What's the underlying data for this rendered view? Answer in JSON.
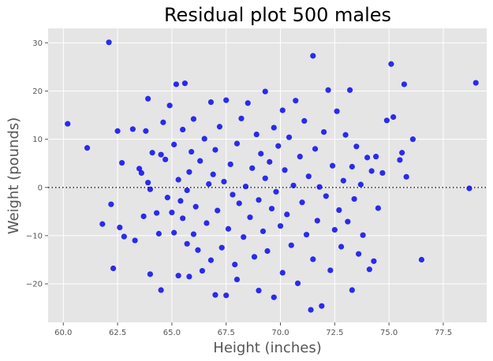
{
  "chart_data": {
    "type": "scatter",
    "title": "Residual plot 500 males",
    "xlabel": "Height (inches)",
    "ylabel": "Weight (pounds)",
    "xlim": [
      59.3,
      79.5
    ],
    "ylim": [
      -28,
      33
    ],
    "xticks": [
      60.0,
      62.5,
      65.0,
      67.5,
      70.0,
      72.5,
      75.0,
      77.5
    ],
    "xtick_labels": [
      "60.0",
      "62.5",
      "65.0",
      "67.5",
      "70.0",
      "72.5",
      "75.0",
      "77.5"
    ],
    "yticks": [
      -20,
      -10,
      0,
      10,
      20,
      30
    ],
    "ytick_labels": [
      "−20",
      "−10",
      "0",
      "10",
      "20",
      "30"
    ],
    "reference_line_y": 0,
    "grid": true,
    "style": "ggplot",
    "background_color": "#e5e5e5",
    "point_color": "#0000ee",
    "series": [
      {
        "values": [
          [
            60.2,
            13.2
          ],
          [
            61.1,
            8.2
          ],
          [
            61.8,
            -7.6
          ],
          [
            62.1,
            30.1
          ],
          [
            62.2,
            -3.5
          ],
          [
            62.3,
            -16.8
          ],
          [
            62.5,
            11.7
          ],
          [
            62.6,
            -8.3
          ],
          [
            62.7,
            5.1
          ],
          [
            62.8,
            -10.2
          ],
          [
            63.2,
            12.1
          ],
          [
            63.3,
            -11.0
          ],
          [
            63.5,
            3.9
          ],
          [
            63.6,
            3.0
          ],
          [
            63.7,
            -6.0
          ],
          [
            63.8,
            11.7
          ],
          [
            63.9,
            18.4
          ],
          [
            63.9,
            1.0
          ],
          [
            64.0,
            -18.0
          ],
          [
            64.0,
            -0.4
          ],
          [
            64.1,
            7.2
          ],
          [
            64.3,
            -5.3
          ],
          [
            64.4,
            -9.6
          ],
          [
            64.5,
            -21.3
          ],
          [
            64.5,
            6.8
          ],
          [
            64.6,
            13.5
          ],
          [
            64.7,
            5.8
          ],
          [
            64.8,
            -2.1
          ],
          [
            64.9,
            17.0
          ],
          [
            65.0,
            -5.2
          ],
          [
            65.1,
            -9.4
          ],
          [
            65.1,
            8.9
          ],
          [
            65.2,
            21.4
          ],
          [
            65.3,
            -18.3
          ],
          [
            65.3,
            1.6
          ],
          [
            65.4,
            -2.8
          ],
          [
            65.5,
            -6.4
          ],
          [
            65.5,
            12.0
          ],
          [
            65.6,
            21.6
          ],
          [
            65.7,
            -11.7
          ],
          [
            65.7,
            -0.6
          ],
          [
            65.8,
            -18.5
          ],
          [
            65.8,
            3.2
          ],
          [
            65.9,
            7.4
          ],
          [
            66.0,
            -9.7
          ],
          [
            66.0,
            14.2
          ],
          [
            66.1,
            -4.0
          ],
          [
            66.2,
            -13.0
          ],
          [
            66.3,
            5.5
          ],
          [
            66.4,
            -17.3
          ],
          [
            66.5,
            10.1
          ],
          [
            66.6,
            -7.4
          ],
          [
            66.7,
            0.7
          ],
          [
            66.8,
            -15.1
          ],
          [
            66.8,
            17.7
          ],
          [
            66.9,
            2.7
          ],
          [
            67.0,
            -22.3
          ],
          [
            67.0,
            7.8
          ],
          [
            67.1,
            -4.8
          ],
          [
            67.2,
            12.6
          ],
          [
            67.3,
            -12.5
          ],
          [
            67.4,
            1.2
          ],
          [
            67.5,
            -22.4
          ],
          [
            67.5,
            18.1
          ],
          [
            67.6,
            -8.6
          ],
          [
            67.7,
            4.8
          ],
          [
            67.8,
            -1.5
          ],
          [
            67.9,
            -16.0
          ],
          [
            68.0,
            9.1
          ],
          [
            68.0,
            -19.1
          ],
          [
            68.1,
            -3.3
          ],
          [
            68.2,
            14.3
          ],
          [
            68.3,
            -10.3
          ],
          [
            68.4,
            0.2
          ],
          [
            68.5,
            17.5
          ],
          [
            68.6,
            -6.2
          ],
          [
            68.7,
            4.0
          ],
          [
            68.8,
            -14.4
          ],
          [
            68.9,
            11.0
          ],
          [
            69.0,
            -2.6
          ],
          [
            69.0,
            -21.4
          ],
          [
            69.1,
            7.0
          ],
          [
            69.2,
            -9.1
          ],
          [
            69.3,
            19.9
          ],
          [
            69.3,
            1.9
          ],
          [
            69.4,
            -13.2
          ],
          [
            69.5,
            5.3
          ],
          [
            69.6,
            -4.4
          ],
          [
            69.7,
            -22.8
          ],
          [
            69.7,
            12.4
          ],
          [
            69.8,
            -0.9
          ],
          [
            69.9,
            8.6
          ],
          [
            70.0,
            -8.0
          ],
          [
            70.1,
            16.0
          ],
          [
            70.1,
            -17.7
          ],
          [
            70.2,
            3.6
          ],
          [
            70.3,
            -5.6
          ],
          [
            70.4,
            10.4
          ],
          [
            70.5,
            -12.0
          ],
          [
            70.6,
            0.4
          ],
          [
            70.7,
            18.0
          ],
          [
            70.8,
            -19.9
          ],
          [
            70.9,
            6.4
          ],
          [
            71.0,
            -3.1
          ],
          [
            71.1,
            13.8
          ],
          [
            71.2,
            -9.8
          ],
          [
            71.3,
            2.3
          ],
          [
            71.4,
            -25.4
          ],
          [
            71.5,
            27.3
          ],
          [
            71.5,
            -14.9
          ],
          [
            71.6,
            8.0
          ],
          [
            71.7,
            -6.9
          ],
          [
            71.8,
            0.1
          ],
          [
            71.9,
            -24.6
          ],
          [
            72.0,
            11.5
          ],
          [
            72.1,
            -1.8
          ],
          [
            72.2,
            20.2
          ],
          [
            72.3,
            -17.2
          ],
          [
            72.4,
            4.5
          ],
          [
            72.5,
            -8.8
          ],
          [
            72.6,
            15.8
          ],
          [
            72.7,
            -4.7
          ],
          [
            72.8,
            -12.3
          ],
          [
            72.9,
            1.4
          ],
          [
            73.0,
            10.9
          ],
          [
            73.1,
            -7.1
          ],
          [
            73.2,
            20.2
          ],
          [
            73.3,
            -21.3
          ],
          [
            73.3,
            4.3
          ],
          [
            73.4,
            -2.4
          ],
          [
            73.5,
            8.5
          ],
          [
            73.6,
            -13.8
          ],
          [
            73.7,
            0.6
          ],
          [
            73.8,
            -9.9
          ],
          [
            74.0,
            6.2
          ],
          [
            74.1,
            -17.0
          ],
          [
            74.2,
            3.4
          ],
          [
            74.3,
            -15.3
          ],
          [
            74.4,
            6.4
          ],
          [
            74.5,
            -4.3
          ],
          [
            74.7,
            3.0
          ],
          [
            74.9,
            13.9
          ],
          [
            75.1,
            25.6
          ],
          [
            75.2,
            14.6
          ],
          [
            75.5,
            5.7
          ],
          [
            75.6,
            7.2
          ],
          [
            75.7,
            21.4
          ],
          [
            75.8,
            2.2
          ],
          [
            76.1,
            10.0
          ],
          [
            76.5,
            -15.0
          ],
          [
            78.7,
            -0.2
          ],
          [
            79.0,
            21.7
          ]
        ]
      }
    ]
  }
}
